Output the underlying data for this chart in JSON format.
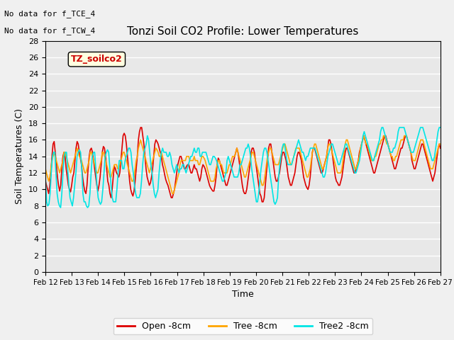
{
  "title": "Tonzi Soil CO2 Profile: Lower Temperatures",
  "xlabel": "Time",
  "ylabel": "Soil Temperatures (C)",
  "note_line1": "No data for f_TCE_4",
  "note_line2": "No data for f_TCW_4",
  "legend_box_label": "TZ_soilco2",
  "xlim": [
    0,
    360
  ],
  "ylim": [
    0,
    28
  ],
  "yticks": [
    0,
    2,
    4,
    6,
    8,
    10,
    12,
    14,
    16,
    18,
    20,
    22,
    24,
    26,
    28
  ],
  "xtick_labels": [
    "Feb 12",
    "Feb 13",
    "Feb 14",
    "Feb 15",
    "Feb 16",
    "Feb 17",
    "Feb 18",
    "Feb 19",
    "Feb 20",
    "Feb 21",
    "Feb 22",
    "Feb 23",
    "Feb 24",
    "Feb 25",
    "Feb 26",
    "Feb 27"
  ],
  "xtick_positions": [
    0,
    24,
    48,
    72,
    96,
    120,
    144,
    168,
    192,
    216,
    240,
    264,
    288,
    312,
    336,
    360
  ],
  "colors": {
    "open": "#dd0000",
    "tree": "#ffa500",
    "tree2": "#00e5e5"
  },
  "legend_labels": [
    "Open -8cm",
    "Tree -8cm",
    "Tree2 -8cm"
  ],
  "bg_color": "#e8e8e8",
  "grid_color": "#ffffff",
  "open_data": [
    11.0,
    10.5,
    10.0,
    9.5,
    10.5,
    12.0,
    14.0,
    15.5,
    15.8,
    14.5,
    13.0,
    11.5,
    10.5,
    9.8,
    10.5,
    12.5,
    14.0,
    14.5,
    14.0,
    12.5,
    11.5,
    10.5,
    10.0,
    9.7,
    10.5,
    11.5,
    12.0,
    13.5,
    15.0,
    15.8,
    15.5,
    14.5,
    13.8,
    13.0,
    11.5,
    10.5,
    9.8,
    9.5,
    10.5,
    12.5,
    14.0,
    14.8,
    15.0,
    14.5,
    13.5,
    12.5,
    11.5,
    10.5,
    9.8,
    10.5,
    11.5,
    13.0,
    14.5,
    15.2,
    15.0,
    14.0,
    12.5,
    11.0,
    10.5,
    9.5,
    9.0,
    10.0,
    11.5,
    12.8,
    12.5,
    12.0,
    11.8,
    11.5,
    12.0,
    13.5,
    15.0,
    16.5,
    16.8,
    16.5,
    15.5,
    14.0,
    12.5,
    11.0,
    10.0,
    9.5,
    9.2,
    9.8,
    11.0,
    12.5,
    14.0,
    16.0,
    17.0,
    17.5,
    17.5,
    16.5,
    15.5,
    14.0,
    12.5,
    11.5,
    11.0,
    10.5,
    10.8,
    11.5,
    12.5,
    14.0,
    15.5,
    16.0,
    15.8,
    15.5,
    15.0,
    14.5,
    14.0,
    13.0,
    12.5,
    11.8,
    11.2,
    10.8,
    10.5,
    10.0,
    9.5,
    9.0,
    9.0,
    9.5,
    10.0,
    11.0,
    12.0,
    13.0,
    13.5,
    14.0,
    14.0,
    13.5,
    13.0,
    12.5,
    12.5,
    12.8,
    13.0,
    13.0,
    12.5,
    12.0,
    12.0,
    12.5,
    13.0,
    12.5,
    12.5,
    12.0,
    11.5,
    11.0,
    11.5,
    12.5,
    13.0,
    12.8,
    12.5,
    12.0,
    11.5,
    11.0,
    10.5,
    10.2,
    10.0,
    9.8,
    9.8,
    10.5,
    11.5,
    13.0,
    13.8,
    13.5,
    13.0,
    12.5,
    12.0,
    11.5,
    11.0,
    10.5,
    10.5,
    11.0,
    11.5,
    12.0,
    12.5,
    13.0,
    13.5,
    14.0,
    14.5,
    15.0,
    14.5,
    13.5,
    12.5,
    11.5,
    10.5,
    9.8,
    9.5,
    9.5,
    10.0,
    11.0,
    12.0,
    13.0,
    14.5,
    15.0,
    15.0,
    14.5,
    13.5,
    12.5,
    11.5,
    10.5,
    9.5,
    9.2,
    8.5,
    8.5,
    9.0,
    10.5,
    12.0,
    13.5,
    15.0,
    15.5,
    15.5,
    14.5,
    13.5,
    12.5,
    11.5,
    11.0,
    11.0,
    11.5,
    12.0,
    13.0,
    14.0,
    14.5,
    14.5,
    14.0,
    13.5,
    12.5,
    11.5,
    11.0,
    10.5,
    10.5,
    11.0,
    11.5,
    12.0,
    13.0,
    14.0,
    14.5,
    14.5,
    14.0,
    13.5,
    12.5,
    11.5,
    11.0,
    10.5,
    10.2,
    10.0,
    10.5,
    11.5,
    13.0,
    14.5,
    15.0,
    15.0,
    14.5,
    14.0,
    13.5,
    13.0,
    12.5,
    12.0,
    12.0,
    12.5,
    13.0,
    13.5,
    14.0,
    15.0,
    16.0,
    16.0,
    15.5,
    14.5,
    13.5,
    12.5,
    11.5,
    11.0,
    10.8,
    10.5,
    10.5,
    11.0,
    11.5,
    12.5,
    13.5,
    14.5,
    15.0,
    15.0,
    14.5,
    14.0,
    13.5,
    13.0,
    12.5,
    12.0,
    12.0,
    12.5,
    13.0,
    13.5,
    14.5,
    15.0,
    15.5,
    16.0,
    16.5,
    16.0,
    15.5,
    15.0,
    14.5,
    14.0,
    13.5,
    13.0,
    12.5,
    12.0,
    12.0,
    12.5,
    13.0,
    13.5,
    14.0,
    14.5,
    15.0,
    15.5,
    16.0,
    16.5,
    16.5,
    16.0,
    15.5,
    15.0,
    14.5,
    14.0,
    13.5,
    13.0,
    12.5,
    12.5,
    13.0,
    13.5,
    14.0,
    14.5,
    15.0,
    15.0,
    15.5,
    16.0,
    16.5,
    16.5,
    16.0,
    15.5,
    15.0,
    14.5,
    13.5,
    13.0,
    12.5,
    12.5,
    13.0,
    13.5,
    14.0,
    14.5,
    15.0,
    15.5,
    15.5,
    15.0,
    14.5,
    14.0,
    13.5,
    13.0,
    12.5,
    12.0,
    11.5,
    11.0,
    11.5,
    12.0,
    13.0,
    14.0,
    15.0,
    15.5,
    15.0
  ],
  "tree_data": [
    12.5,
    12.0,
    11.5,
    11.0,
    11.5,
    12.5,
    13.5,
    14.0,
    14.5,
    14.0,
    13.5,
    13.0,
    12.5,
    12.0,
    12.5,
    13.0,
    13.5,
    14.5,
    14.5,
    14.0,
    13.5,
    13.0,
    12.5,
    12.0,
    12.5,
    13.0,
    13.5,
    14.0,
    14.5,
    15.0,
    14.5,
    14.0,
    13.8,
    13.5,
    13.0,
    12.5,
    12.0,
    12.0,
    12.5,
    13.0,
    13.5,
    14.5,
    14.5,
    14.0,
    13.5,
    13.0,
    12.5,
    12.0,
    12.0,
    12.5,
    13.0,
    13.5,
    14.5,
    14.5,
    14.0,
    13.5,
    13.0,
    12.5,
    12.0,
    11.5,
    11.5,
    12.0,
    12.5,
    13.0,
    13.0,
    13.0,
    12.5,
    12.5,
    13.0,
    13.5,
    14.0,
    14.5,
    14.5,
    14.0,
    13.5,
    13.0,
    12.5,
    12.0,
    11.5,
    11.0,
    11.0,
    11.5,
    12.5,
    13.5,
    14.0,
    15.0,
    15.5,
    16.0,
    15.5,
    15.0,
    14.5,
    14.0,
    13.5,
    13.0,
    12.5,
    12.0,
    12.5,
    13.0,
    13.5,
    14.0,
    14.5,
    15.0,
    14.8,
    14.5,
    14.0,
    14.0,
    14.5,
    14.0,
    13.5,
    13.0,
    12.5,
    12.0,
    11.5,
    11.0,
    10.5,
    10.0,
    9.5,
    9.5,
    10.0,
    10.5,
    11.0,
    11.5,
    12.0,
    13.0,
    13.5,
    13.5,
    13.5,
    13.5,
    13.5,
    14.0,
    14.0,
    14.0,
    13.5,
    13.5,
    13.5,
    13.5,
    14.0,
    13.5,
    13.5,
    13.5,
    13.0,
    13.0,
    13.5,
    14.0,
    14.0,
    13.8,
    13.5,
    13.0,
    12.5,
    12.0,
    11.5,
    11.0,
    11.0,
    11.0,
    11.0,
    11.5,
    12.5,
    13.0,
    13.5,
    13.5,
    13.0,
    13.0,
    12.5,
    12.0,
    12.0,
    12.0,
    12.0,
    12.5,
    13.0,
    13.0,
    13.5,
    14.0,
    14.0,
    14.0,
    14.5,
    15.0,
    14.5,
    14.0,
    13.5,
    13.0,
    12.5,
    12.0,
    11.5,
    11.5,
    12.0,
    12.5,
    13.0,
    13.5,
    14.0,
    14.5,
    14.5,
    14.0,
    13.5,
    13.0,
    12.5,
    12.0,
    11.5,
    11.0,
    10.5,
    10.5,
    11.0,
    12.0,
    13.0,
    14.0,
    14.5,
    15.0,
    15.0,
    14.5,
    14.0,
    13.5,
    13.0,
    13.0,
    13.0,
    13.0,
    13.5,
    14.0,
    14.5,
    15.0,
    15.5,
    15.5,
    15.0,
    14.5,
    14.0,
    13.5,
    13.0,
    13.0,
    13.5,
    14.0,
    14.5,
    15.0,
    15.0,
    15.0,
    15.0,
    14.5,
    14.0,
    13.5,
    13.0,
    12.5,
    12.0,
    11.5,
    11.5,
    12.0,
    12.5,
    13.5,
    14.5,
    15.0,
    15.5,
    15.5,
    15.0,
    14.5,
    14.0,
    13.5,
    13.0,
    12.5,
    12.5,
    13.0,
    13.5,
    14.0,
    15.0,
    15.5,
    15.5,
    15.0,
    14.5,
    14.0,
    13.5,
    13.0,
    12.5,
    12.0,
    12.0,
    12.0,
    12.0,
    12.5,
    13.5,
    14.5,
    15.5,
    16.0,
    16.0,
    15.5,
    15.0,
    14.5,
    14.0,
    13.5,
    13.0,
    12.5,
    12.5,
    13.0,
    13.5,
    14.0,
    15.0,
    15.5,
    16.0,
    16.5,
    16.0,
    15.5,
    15.5,
    15.0,
    14.5,
    14.0,
    13.5,
    13.5,
    13.5,
    14.0,
    14.0,
    14.5,
    15.0,
    15.5,
    15.5,
    16.0,
    16.0,
    16.5,
    16.5,
    16.0,
    15.5,
    15.5,
    15.0,
    14.5,
    14.0,
    14.0,
    13.5,
    13.5,
    14.0,
    14.0,
    14.5,
    15.0,
    15.5,
    16.0,
    16.0,
    16.0,
    16.5,
    16.5,
    16.5,
    16.0,
    15.5,
    15.0,
    14.5,
    14.0,
    13.5,
    13.5,
    13.5,
    14.0,
    14.5,
    15.0,
    15.5,
    16.0,
    16.0,
    16.0,
    15.5,
    15.0,
    14.5,
    14.0,
    13.5,
    13.0,
    12.5,
    12.5,
    12.5,
    13.0,
    13.5,
    14.0,
    14.5,
    15.0,
    15.5,
    15.5
  ],
  "tree2_data": [
    11.5,
    8.5,
    8.0,
    8.2,
    9.5,
    12.0,
    14.0,
    14.5,
    14.5,
    12.0,
    9.5,
    8.5,
    8.0,
    7.8,
    9.5,
    12.0,
    14.0,
    14.5,
    14.5,
    12.5,
    10.5,
    9.0,
    8.5,
    8.0,
    9.0,
    10.5,
    12.0,
    14.0,
    14.5,
    14.8,
    14.5,
    12.5,
    9.5,
    8.5,
    8.5,
    8.0,
    7.8,
    8.0,
    9.5,
    12.0,
    14.0,
    14.5,
    14.5,
    12.5,
    10.5,
    9.0,
    8.5,
    8.2,
    8.5,
    10.0,
    12.0,
    14.0,
    14.5,
    14.8,
    14.5,
    12.5,
    10.5,
    9.0,
    8.5,
    8.5,
    8.5,
    10.0,
    12.0,
    13.5,
    13.5,
    13.5,
    12.5,
    12.5,
    13.5,
    14.0,
    14.5,
    15.0,
    15.0,
    14.5,
    13.0,
    12.0,
    10.5,
    9.5,
    9.0,
    9.0,
    9.0,
    9.5,
    11.0,
    13.0,
    14.5,
    15.0,
    15.5,
    16.5,
    16.0,
    14.5,
    13.0,
    12.0,
    10.5,
    9.5,
    9.0,
    9.5,
    10.0,
    12.0,
    13.5,
    14.5,
    15.0,
    14.5,
    14.5,
    14.5,
    14.0,
    14.0,
    14.5,
    14.0,
    13.0,
    12.5,
    12.0,
    12.5,
    13.0,
    12.5,
    12.0,
    12.5,
    12.5,
    13.0,
    13.0,
    12.5,
    12.0,
    12.5,
    13.0,
    13.5,
    14.0,
    14.0,
    14.5,
    15.0,
    14.5,
    14.5,
    15.0,
    15.0,
    14.0,
    14.0,
    14.5,
    14.5,
    14.5,
    14.5,
    14.0,
    13.5,
    13.0,
    13.0,
    13.5,
    14.0,
    14.0,
    13.8,
    13.5,
    13.0,
    12.5,
    12.0,
    11.5,
    11.0,
    11.0,
    11.5,
    12.0,
    13.5,
    14.0,
    13.5,
    13.0,
    12.5,
    12.0,
    11.5,
    11.5,
    11.5,
    11.5,
    12.0,
    13.0,
    13.0,
    13.5,
    14.0,
    14.5,
    15.0,
    15.0,
    15.5,
    15.0,
    14.0,
    12.5,
    11.5,
    10.5,
    9.5,
    8.5,
    8.5,
    9.5,
    11.0,
    12.5,
    13.5,
    14.5,
    15.0,
    15.0,
    14.5,
    13.5,
    12.5,
    11.5,
    10.5,
    9.5,
    8.5,
    8.2,
    8.5,
    9.0,
    11.5,
    13.0,
    14.0,
    15.0,
    15.5,
    15.5,
    14.5,
    13.5,
    13.0,
    13.0,
    13.0,
    13.0,
    13.5,
    14.0,
    14.5,
    15.0,
    15.5,
    16.0,
    15.5,
    15.0,
    14.5,
    14.5,
    14.0,
    13.5,
    14.0,
    14.0,
    14.5,
    15.0,
    15.0,
    15.0,
    15.0,
    15.0,
    14.5,
    14.0,
    13.5,
    13.0,
    12.5,
    12.0,
    11.5,
    11.5,
    12.0,
    13.0,
    14.0,
    14.5,
    15.0,
    15.5,
    15.5,
    15.0,
    14.5,
    14.0,
    13.5,
    13.0,
    13.0,
    13.5,
    14.0,
    14.5,
    15.0,
    15.5,
    15.5,
    15.0,
    14.5,
    14.0,
    13.5,
    13.0,
    12.5,
    12.0,
    12.0,
    12.5,
    13.0,
    13.5,
    14.5,
    15.5,
    16.5,
    17.0,
    16.5,
    16.0,
    15.5,
    15.0,
    14.5,
    14.0,
    13.5,
    13.5,
    14.0,
    14.5,
    15.0,
    15.5,
    16.0,
    17.0,
    17.5,
    17.5,
    17.0,
    16.5,
    16.0,
    15.5,
    15.0,
    14.5,
    14.5,
    14.5,
    15.0,
    15.0,
    15.5,
    16.0,
    17.0,
    17.5,
    17.5,
    17.5,
    17.5,
    17.5,
    17.0,
    16.5,
    16.0,
    15.5,
    15.0,
    14.5,
    14.5,
    14.5,
    15.0,
    15.5,
    16.0,
    16.5,
    17.0,
    17.5,
    17.5,
    17.5,
    17.0,
    16.5,
    16.0,
    15.5,
    15.0,
    14.5,
    14.0,
    13.5,
    13.5,
    14.0,
    15.0,
    16.0,
    17.0,
    17.5,
    17.5
  ]
}
